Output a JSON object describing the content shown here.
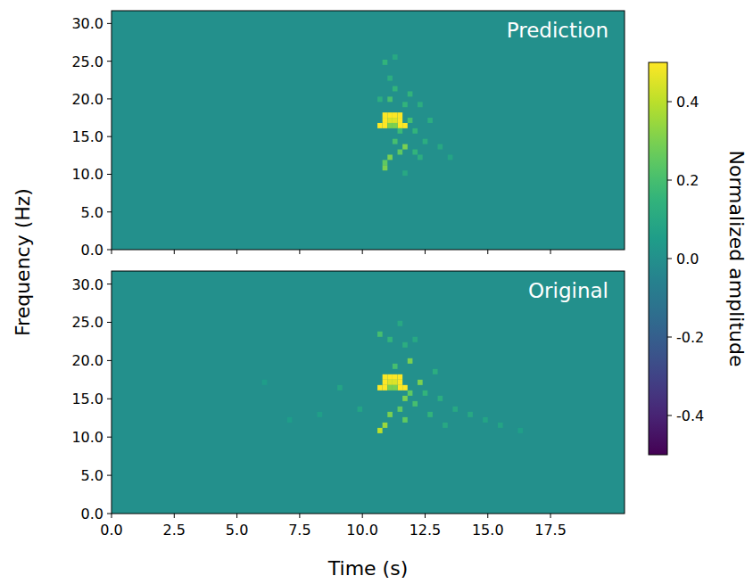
{
  "chart_data": {
    "type": "heatmap",
    "xlabel": "Time (s)",
    "ylabel": "Frequency (Hz)",
    "xlim": [
      0,
      20.45
    ],
    "xticks": [
      {
        "value": 0,
        "label": "0.0"
      },
      2.5,
      {
        "value": 5,
        "label": "5.0"
      },
      7.5,
      {
        "value": 10,
        "label": "10.0"
      },
      12.5,
      {
        "value": 15,
        "label": "15.0"
      },
      17.5
    ],
    "ylim": [
      0,
      31.7
    ],
    "yticks": [
      {
        "value": 0,
        "label": "0.0"
      },
      {
        "value": 5,
        "label": "5.0"
      },
      {
        "value": 10,
        "label": "10.0"
      },
      {
        "value": 15,
        "label": "15.0"
      },
      {
        "value": 20,
        "label": "20.0"
      },
      {
        "value": 25,
        "label": "25.0"
      },
      {
        "value": 30,
        "label": "30.0"
      }
    ],
    "cell_size": [
      0.2,
      0.7
    ],
    "colorbar": {
      "label": "Normalized amplitude",
      "range": [
        -0.5,
        0.5
      ],
      "ticks": [
        -0.4,
        -0.2,
        {
          "value": 0,
          "label": "0.0"
        },
        0.2,
        0.4
      ]
    },
    "panels": [
      {
        "title": "Prediction",
        "cells": [
          [
            10.8,
            17.5,
            0.5
          ],
          [
            11.0,
            17.5,
            0.5
          ],
          [
            11.2,
            17.5,
            0.5
          ],
          [
            11.4,
            17.5,
            0.5
          ],
          [
            10.8,
            16.8,
            0.5
          ],
          [
            11.0,
            16.8,
            0.45
          ],
          [
            11.2,
            16.8,
            0.45
          ],
          [
            11.4,
            16.8,
            0.5
          ],
          [
            10.6,
            16.1,
            0.5
          ],
          [
            10.8,
            16.1,
            0.5
          ],
          [
            11.4,
            16.1,
            0.5
          ],
          [
            11.6,
            16.1,
            0.5
          ],
          [
            11.0,
            16.1,
            0.3
          ],
          [
            11.2,
            16.1,
            0.3
          ],
          [
            10.8,
            24.5,
            0.15
          ],
          [
            11.0,
            22.4,
            0.12
          ],
          [
            11.2,
            21.0,
            0.15
          ],
          [
            11.0,
            19.6,
            0.2
          ],
          [
            11.6,
            18.9,
            0.15
          ],
          [
            12.2,
            18.9,
            0.12
          ],
          [
            11.8,
            16.8,
            0.2
          ],
          [
            11.4,
            15.4,
            0.18
          ],
          [
            11.2,
            14.0,
            0.2
          ],
          [
            11.6,
            13.3,
            0.3
          ],
          [
            11.4,
            12.6,
            0.25
          ],
          [
            11.0,
            11.9,
            0.3
          ],
          [
            10.8,
            11.2,
            0.25
          ],
          [
            10.8,
            10.5,
            0.3
          ],
          [
            12.0,
            15.4,
            0.15
          ],
          [
            12.4,
            14.0,
            0.12
          ],
          [
            12.2,
            11.9,
            0.12
          ],
          [
            13.0,
            13.3,
            0.1
          ],
          [
            11.8,
            20.3,
            0.15
          ],
          [
            12.6,
            16.8,
            0.12
          ],
          [
            11.2,
            25.2,
            0.1
          ],
          [
            10.6,
            19.6,
            0.12
          ],
          [
            12.0,
            12.6,
            0.15
          ],
          [
            13.4,
            11.9,
            0.08
          ],
          [
            11.6,
            9.8,
            0.1
          ]
        ]
      },
      {
        "title": "Original",
        "cells": [
          [
            10.8,
            17.5,
            0.5
          ],
          [
            11.0,
            17.5,
            0.5
          ],
          [
            11.2,
            17.5,
            0.5
          ],
          [
            11.4,
            17.5,
            0.5
          ],
          [
            10.8,
            16.8,
            0.5
          ],
          [
            11.0,
            16.8,
            0.45
          ],
          [
            11.2,
            16.8,
            0.45
          ],
          [
            11.4,
            16.8,
            0.5
          ],
          [
            10.6,
            16.1,
            0.5
          ],
          [
            10.8,
            16.1,
            0.5
          ],
          [
            11.4,
            16.1,
            0.5
          ],
          [
            11.6,
            16.1,
            0.5
          ],
          [
            11.0,
            16.1,
            0.3
          ],
          [
            11.2,
            16.1,
            0.3
          ],
          [
            10.6,
            23.1,
            0.2
          ],
          [
            11.0,
            22.4,
            0.15
          ],
          [
            11.6,
            21.7,
            0.12
          ],
          [
            11.8,
            19.6,
            0.3
          ],
          [
            11.2,
            18.9,
            0.2
          ],
          [
            12.2,
            16.8,
            0.3
          ],
          [
            11.8,
            15.4,
            0.25
          ],
          [
            11.6,
            14.7,
            0.3
          ],
          [
            11.4,
            13.3,
            0.25
          ],
          [
            11.0,
            12.6,
            0.3
          ],
          [
            10.8,
            11.2,
            0.35
          ],
          [
            10.6,
            10.5,
            0.4
          ],
          [
            11.6,
            11.9,
            0.25
          ],
          [
            12.0,
            14.0,
            0.2
          ],
          [
            12.4,
            15.4,
            0.15
          ],
          [
            13.0,
            14.7,
            0.12
          ],
          [
            13.6,
            13.3,
            0.1
          ],
          [
            14.2,
            12.6,
            0.1
          ],
          [
            14.8,
            11.9,
            0.08
          ],
          [
            15.4,
            11.2,
            0.08
          ],
          [
            16.2,
            10.5,
            0.06
          ],
          [
            9.0,
            16.1,
            0.08
          ],
          [
            8.2,
            12.6,
            0.06
          ],
          [
            7.0,
            11.9,
            0.05
          ],
          [
            6.0,
            16.8,
            0.05
          ],
          [
            12.8,
            18.2,
            0.12
          ],
          [
            12.0,
            22.4,
            0.1
          ],
          [
            11.4,
            24.5,
            0.1
          ],
          [
            13.2,
            11.2,
            0.1
          ],
          [
            12.6,
            12.6,
            0.15
          ],
          [
            9.8,
            13.3,
            0.08
          ]
        ]
      }
    ]
  }
}
